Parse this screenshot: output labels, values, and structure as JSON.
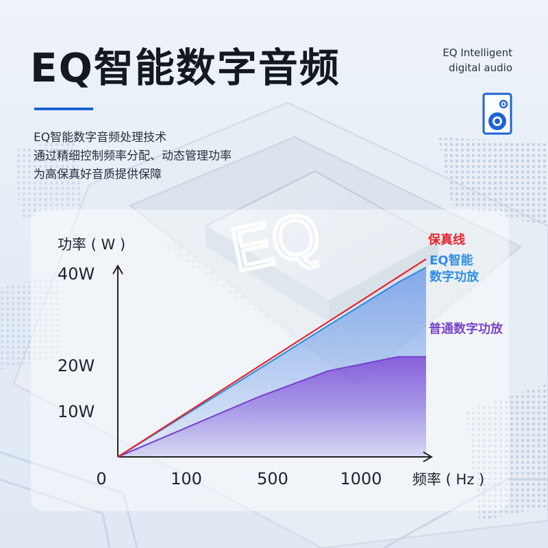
{
  "header": {
    "title": "EQ智能数字音频",
    "subtitle_en": [
      "EQ Intelligent",
      "digital audio"
    ]
  },
  "description": {
    "lines": [
      "EQ智能数字音频处理技术",
      "通过精细控制频率分配、动态管理功率",
      "为高保真好音质提供保障"
    ]
  },
  "icons": {
    "speaker": "speaker-icon",
    "chip_graphic": "chip-illustration"
  },
  "colors": {
    "accent": "#1e63d8",
    "fidelity": "#e8232a",
    "eq_amp": "#2f8ee5",
    "normal_amp": "#7b45cf"
  },
  "chart_data": {
    "type": "line",
    "ylabel": "功率 ( W )",
    "xlabel": "频率 ( Hz )",
    "x_ticks": [
      "0",
      "100",
      "500",
      "1000"
    ],
    "y_ticks": [
      "10W",
      "20W",
      "40W"
    ],
    "y_tick_values": [
      10,
      20,
      40
    ],
    "ylim": [
      0,
      50
    ],
    "x_positions": [
      0,
      100,
      200,
      300,
      400,
      440
    ],
    "series": [
      {
        "name": "保真线",
        "label_lines": [
          "保真线"
        ],
        "color": "#e8232a",
        "values": [
          0,
          9.8,
          19.6,
          29.4,
          39.2,
          43.1
        ]
      },
      {
        "name": "EQ智能数字功放",
        "label_lines": [
          "EQ智能",
          "数字功放"
        ],
        "color": "#2f8ee5",
        "values": [
          0,
          9.5,
          19.0,
          28.6,
          38.0,
          41.3
        ]
      },
      {
        "name": "普通数字功放",
        "label_lines": [
          "普通数字功放"
        ],
        "color": "#7b45cf",
        "values": [
          0,
          6.5,
          13.0,
          18.7,
          21.8,
          21.8
        ]
      }
    ]
  }
}
